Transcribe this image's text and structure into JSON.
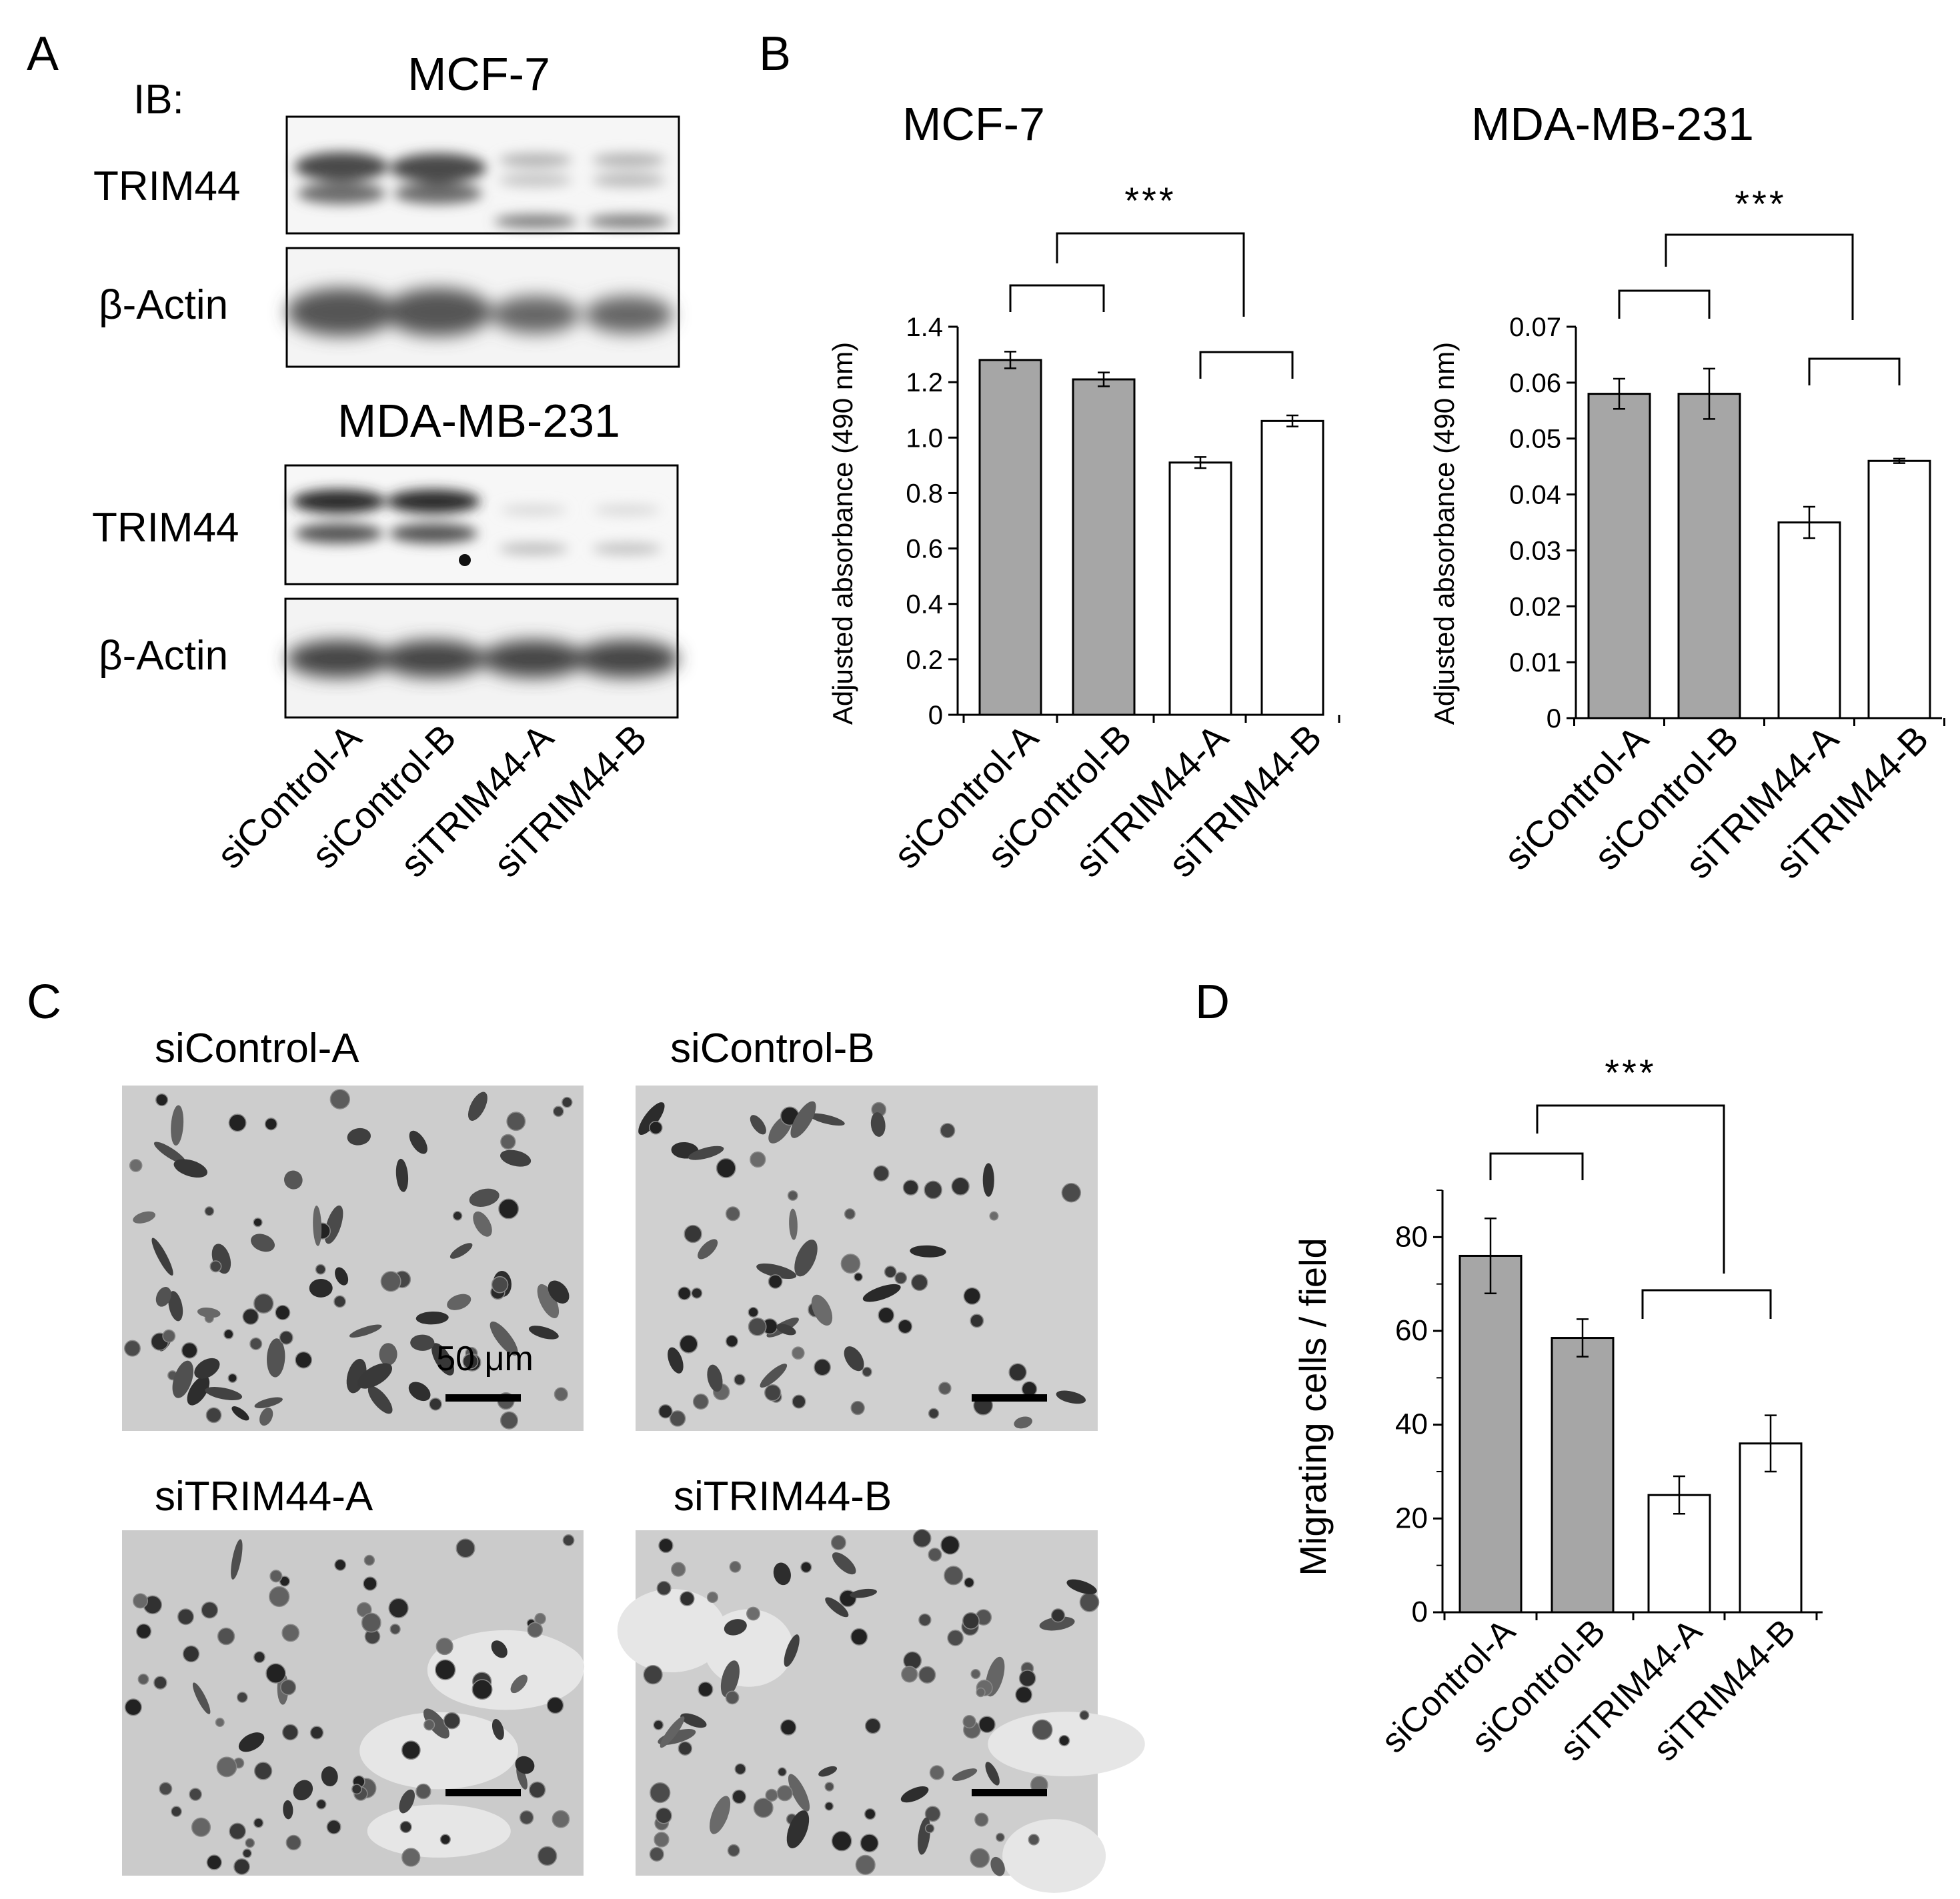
{
  "panels": {
    "a": {
      "letter": "A",
      "ib_label": "IB:",
      "blots": [
        {
          "cell_line": "MCF-7",
          "rows": [
            "TRIM44",
            "β-Actin"
          ]
        },
        {
          "cell_line": "MDA-MB-231",
          "rows": [
            "TRIM44",
            "β-Actin"
          ]
        }
      ],
      "lanes": [
        "siControl-A",
        "siControl-B",
        "siTRIM44-A",
        "siTRIM44-B"
      ]
    },
    "b": {
      "letter": "B"
    },
    "c": {
      "letter": "C",
      "images": [
        "siControl-A",
        "siControl-B",
        "siTRIM44-A",
        "siTRIM44-B"
      ],
      "scale_bar_label": "50 μm"
    },
    "d": {
      "letter": "D"
    }
  },
  "chart_data": [
    {
      "type": "bar",
      "title": "MCF-7",
      "categories": [
        "siControl-A",
        "siControl-B",
        "siTRIM44-A",
        "siTRIM44-B"
      ],
      "values": [
        1.28,
        1.21,
        0.91,
        1.06
      ],
      "errors": [
        0.03,
        0.025,
        0.02,
        0.02
      ],
      "bar_colors": [
        "#a6a6a6",
        "#a6a6a6",
        "#ffffff",
        "#ffffff"
      ],
      "ylabel": "Adjusted absorbance (490 nm)",
      "ylim": [
        0,
        1.4
      ],
      "yticks": [
        "0",
        "0.2",
        "0.4",
        "0.6",
        "0.8",
        "1.0",
        "1.2",
        "1.4"
      ],
      "significance": "***"
    },
    {
      "type": "bar",
      "title": "MDA-MB-231",
      "categories": [
        "siControl-A",
        "siControl-B",
        "siTRIM44-A",
        "siTRIM44-B"
      ],
      "values": [
        0.058,
        0.058,
        0.035,
        0.046
      ],
      "errors": [
        0.0027,
        0.0045,
        0.0028,
        0.0004
      ],
      "bar_colors": [
        "#a6a6a6",
        "#a6a6a6",
        "#ffffff",
        "#ffffff"
      ],
      "ylabel": "Adjusted absorbance (490 nm)",
      "ylim": [
        0,
        0.07
      ],
      "yticks": [
        "0",
        "0.01",
        "0.02",
        "0.03",
        "0.04",
        "0.05",
        "0.06",
        "0.07"
      ],
      "significance": "***"
    },
    {
      "type": "bar",
      "title": "",
      "categories": [
        "siControl-A",
        "siControl-B",
        "siTRIM44-A",
        "siTRIM44-B"
      ],
      "values": [
        76,
        58.5,
        25,
        36
      ],
      "errors": [
        8,
        4,
        4,
        6
      ],
      "bar_colors": [
        "#a6a6a6",
        "#a6a6a6",
        "#ffffff",
        "#ffffff"
      ],
      "ylabel": "Migrating cells / field",
      "ylim": [
        0,
        90
      ],
      "yticks": [
        "0",
        "20",
        "40",
        "60",
        "80"
      ],
      "significance": "***"
    }
  ]
}
